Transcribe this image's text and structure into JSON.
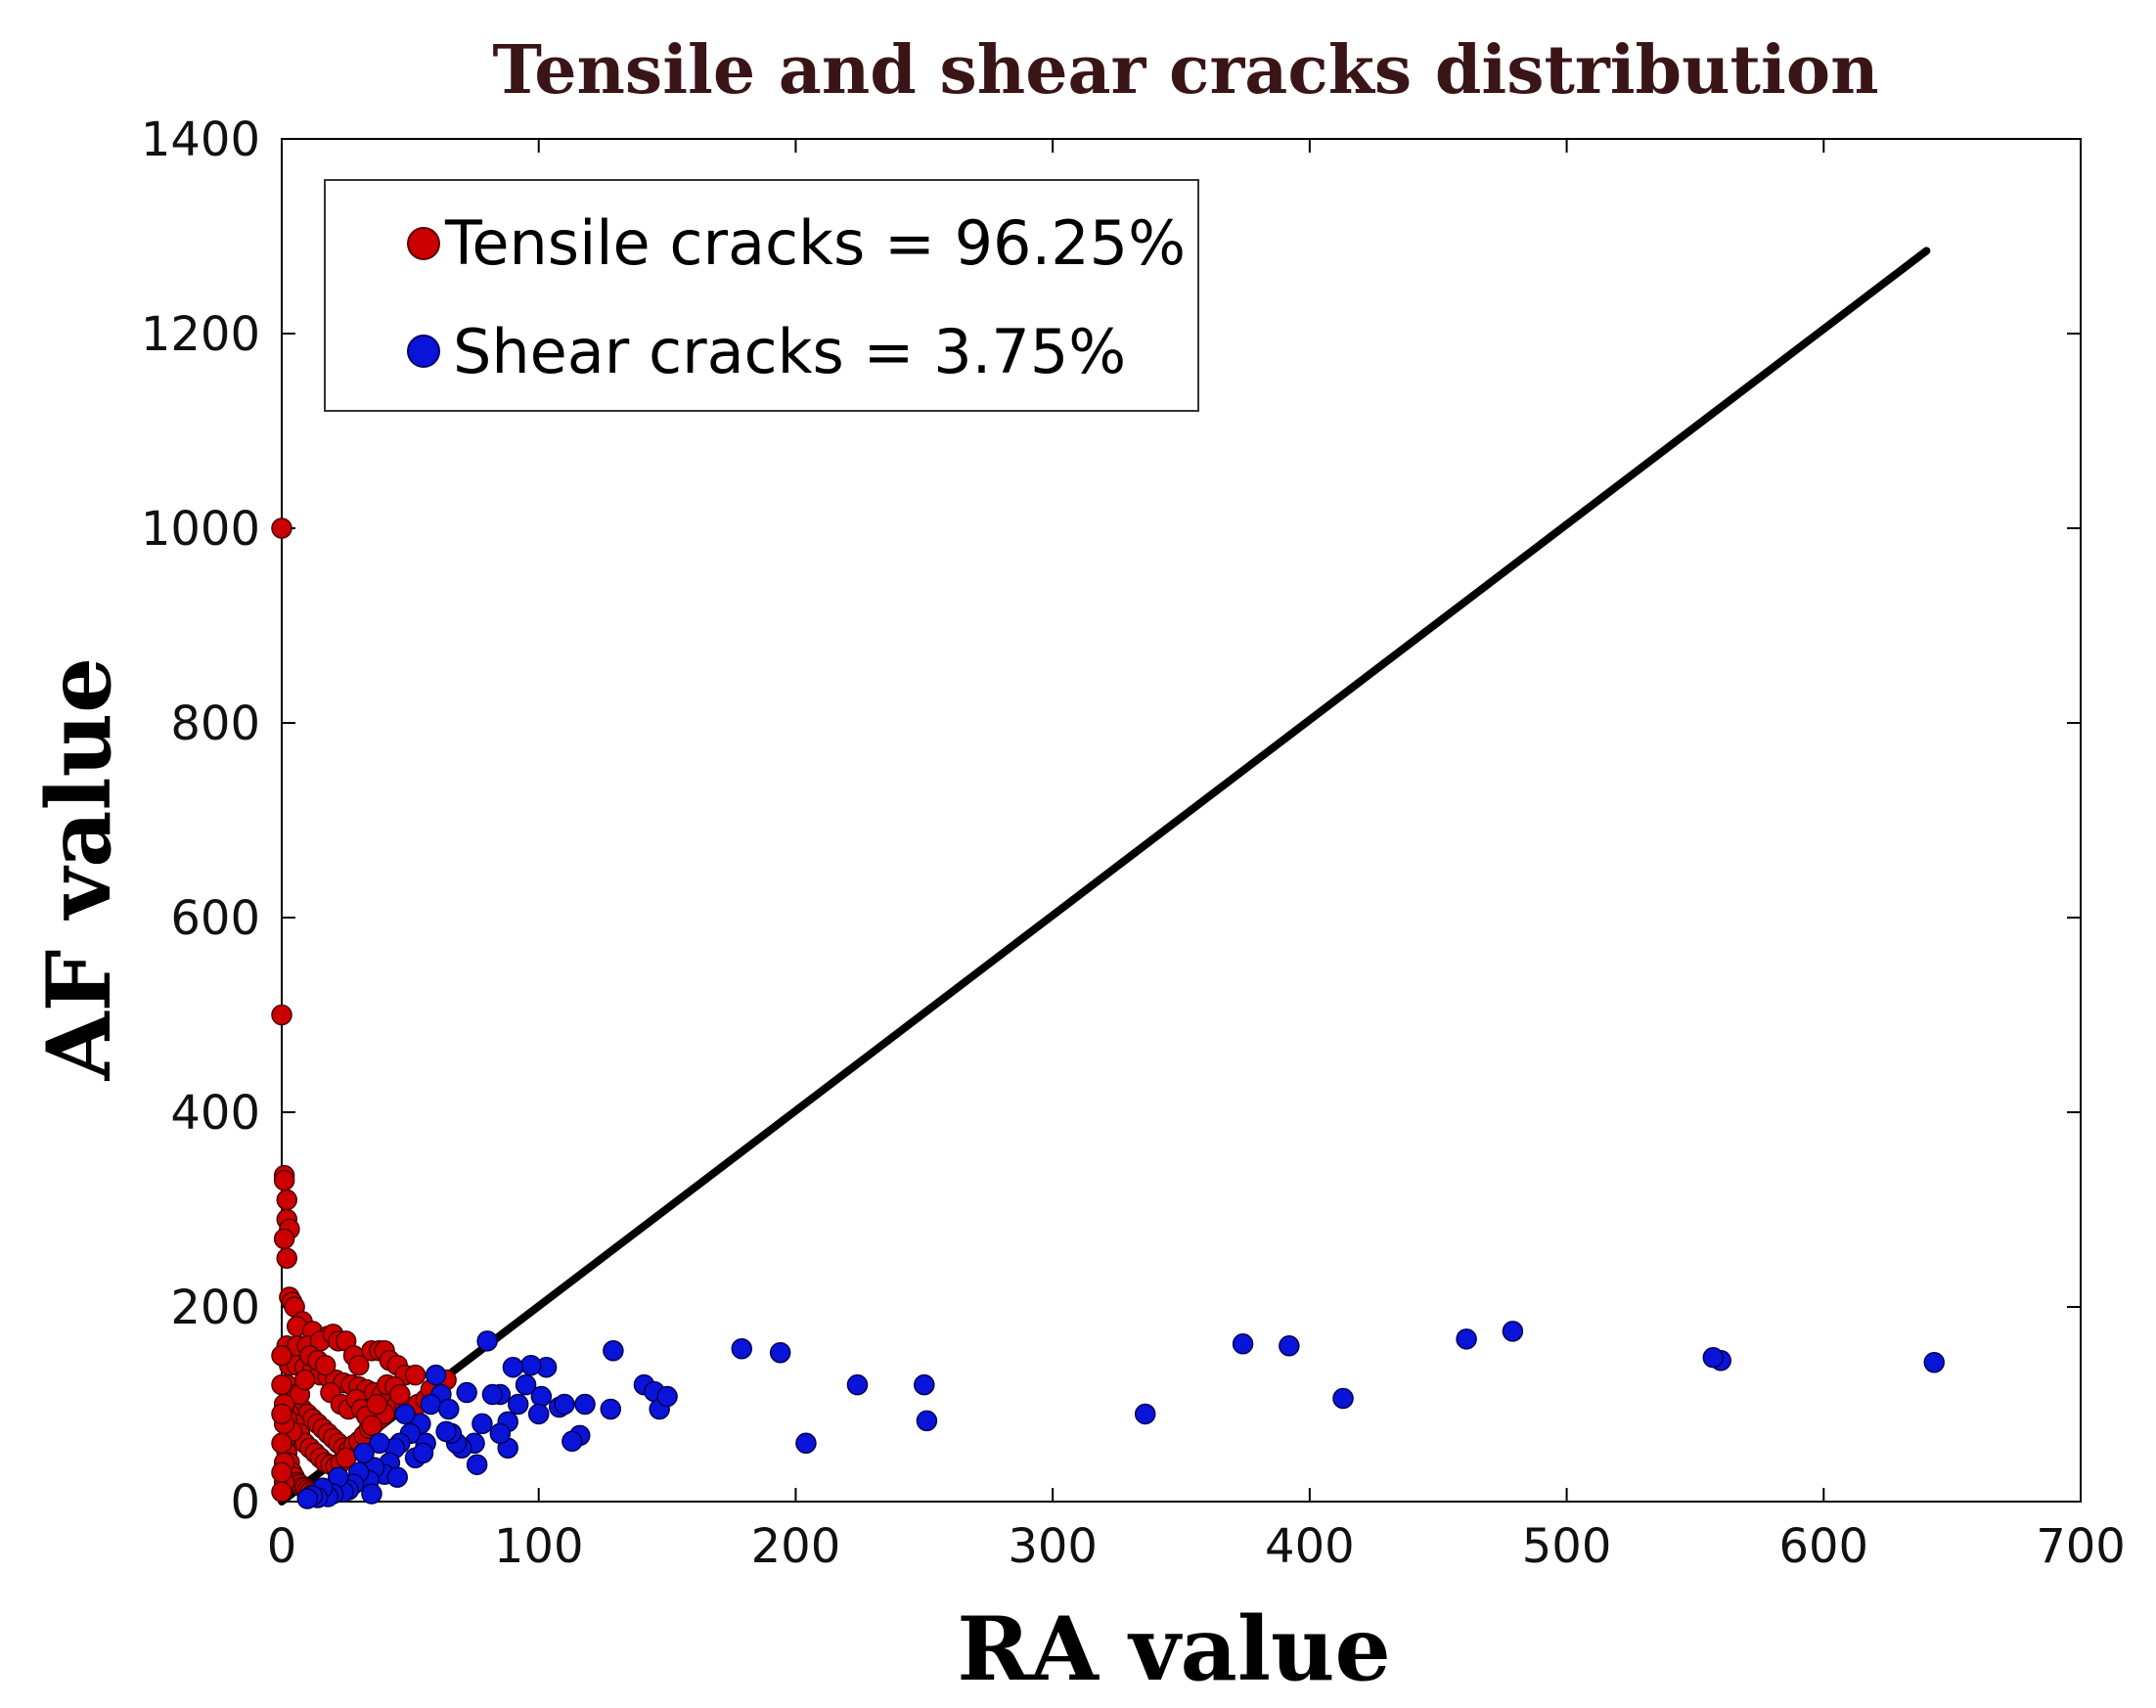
{
  "chart_data": {
    "type": "scatter",
    "title": "Tensile and shear cracks distribution",
    "xlabel": "RA value",
    "ylabel": "AF value",
    "xlim": [
      0,
      700
    ],
    "ylim": [
      0,
      1400
    ],
    "xticks": [
      0,
      100,
      200,
      300,
      400,
      500,
      600,
      700
    ],
    "yticks": [
      0,
      200,
      400,
      600,
      800,
      1000,
      1200,
      1400
    ],
    "legend": {
      "position": "top-left",
      "entries": [
        "Tensile cracks = 96.25%",
        "Shear cracks = 3.75%"
      ]
    },
    "line": {
      "x": [
        0,
        640
      ],
      "y": [
        0,
        1285
      ],
      "color": "#000000"
    },
    "series": [
      {
        "name": "Tensile cracks = 96.25%",
        "color": "#cc0000",
        "points": [
          [
            0,
            1000
          ],
          [
            0,
            500
          ],
          [
            1,
            335
          ],
          [
            1,
            330
          ],
          [
            2,
            310
          ],
          [
            2,
            290
          ],
          [
            3,
            280
          ],
          [
            1,
            270
          ],
          [
            2,
            250
          ],
          [
            3,
            210
          ],
          [
            4,
            205
          ],
          [
            5,
            200
          ],
          [
            8,
            185
          ],
          [
            6,
            180
          ],
          [
            12,
            175
          ],
          [
            18,
            170
          ],
          [
            2,
            160
          ],
          [
            6,
            160
          ],
          [
            10,
            160
          ],
          [
            15,
            165
          ],
          [
            20,
            172
          ],
          [
            22,
            165
          ],
          [
            25,
            165
          ],
          [
            28,
            150
          ],
          [
            30,
            140
          ],
          [
            35,
            155
          ],
          [
            38,
            155
          ],
          [
            40,
            155
          ],
          [
            42,
            145
          ],
          [
            45,
            140
          ],
          [
            48,
            130
          ],
          [
            52,
            130
          ],
          [
            3,
            140
          ],
          [
            6,
            140
          ],
          [
            9,
            138
          ],
          [
            12,
            135
          ],
          [
            15,
            130
          ],
          [
            18,
            128
          ],
          [
            21,
            125
          ],
          [
            24,
            122
          ],
          [
            27,
            120
          ],
          [
            30,
            118
          ],
          [
            33,
            115
          ],
          [
            36,
            112
          ],
          [
            39,
            110
          ],
          [
            42,
            105
          ],
          [
            45,
            100
          ],
          [
            48,
            98
          ],
          [
            50,
            95
          ],
          [
            53,
            100
          ],
          [
            56,
            105
          ],
          [
            60,
            120
          ],
          [
            64,
            125
          ],
          [
            58,
            115
          ],
          [
            2,
            120
          ],
          [
            4,
            110
          ],
          [
            6,
            100
          ],
          [
            8,
            95
          ],
          [
            10,
            90
          ],
          [
            12,
            85
          ],
          [
            14,
            80
          ],
          [
            16,
            75
          ],
          [
            18,
            70
          ],
          [
            20,
            65
          ],
          [
            22,
            60
          ],
          [
            24,
            55
          ],
          [
            26,
            52
          ],
          [
            28,
            58
          ],
          [
            30,
            62
          ],
          [
            32,
            68
          ],
          [
            34,
            75
          ],
          [
            36,
            80
          ],
          [
            38,
            85
          ],
          [
            40,
            90
          ],
          [
            3,
            90
          ],
          [
            5,
            80
          ],
          [
            7,
            70
          ],
          [
            9,
            60
          ],
          [
            11,
            55
          ],
          [
            13,
            50
          ],
          [
            15,
            45
          ],
          [
            17,
            40
          ],
          [
            19,
            38
          ],
          [
            21,
            36
          ],
          [
            23,
            40
          ],
          [
            25,
            45
          ],
          [
            1,
            60
          ],
          [
            2,
            50
          ],
          [
            3,
            40
          ],
          [
            4,
            30
          ],
          [
            5,
            25
          ],
          [
            6,
            20
          ],
          [
            7,
            18
          ],
          [
            8,
            15
          ],
          [
            9,
            14
          ],
          [
            10,
            12
          ],
          [
            11,
            10
          ],
          [
            12,
            8
          ],
          [
            2,
            85
          ],
          [
            4,
            72
          ],
          [
            7,
            110
          ],
          [
            9,
            125
          ],
          [
            11,
            150
          ],
          [
            14,
            145
          ],
          [
            17,
            140
          ],
          [
            19,
            112
          ],
          [
            23,
            100
          ],
          [
            26,
            95
          ],
          [
            29,
            105
          ],
          [
            31,
            95
          ],
          [
            33,
            88
          ],
          [
            35,
            78
          ],
          [
            37,
            100
          ],
          [
            41,
            120
          ],
          [
            44,
            118
          ],
          [
            46,
            110
          ],
          [
            1,
            100
          ],
          [
            1,
            80
          ],
          [
            1,
            40
          ],
          [
            1,
            20
          ],
          [
            0,
            150
          ],
          [
            0,
            120
          ],
          [
            0,
            90
          ],
          [
            0,
            60
          ],
          [
            0,
            30
          ],
          [
            0,
            10
          ]
        ]
      },
      {
        "name": "Shear cracks = 3.75%",
        "color": "#0a14d8",
        "points": [
          [
            643,
            143
          ],
          [
            560,
            145
          ],
          [
            557,
            148
          ],
          [
            479,
            175
          ],
          [
            461,
            167
          ],
          [
            413,
            106
          ],
          [
            392,
            160
          ],
          [
            374,
            162
          ],
          [
            336,
            90
          ],
          [
            250,
            120
          ],
          [
            251,
            83
          ],
          [
            224,
            120
          ],
          [
            204,
            60
          ],
          [
            194,
            153
          ],
          [
            179,
            157
          ],
          [
            129,
            155
          ],
          [
            141,
            120
          ],
          [
            145,
            113
          ],
          [
            147,
            95
          ],
          [
            150,
            108
          ],
          [
            128,
            95
          ],
          [
            118,
            100
          ],
          [
            116,
            68
          ],
          [
            113,
            62
          ],
          [
            108,
            97
          ],
          [
            103,
            138
          ],
          [
            101,
            108
          ],
          [
            100,
            90
          ],
          [
            97,
            140
          ],
          [
            95,
            120
          ],
          [
            90,
            138
          ],
          [
            88,
            55
          ],
          [
            88,
            82
          ],
          [
            85,
            110
          ],
          [
            82,
            110
          ],
          [
            80,
            165
          ],
          [
            78,
            80
          ],
          [
            75,
            60
          ],
          [
            76,
            38
          ],
          [
            72,
            112
          ],
          [
            70,
            55
          ],
          [
            68,
            60
          ],
          [
            66,
            70
          ],
          [
            64,
            72
          ],
          [
            62,
            110
          ],
          [
            60,
            130
          ],
          [
            58,
            100
          ],
          [
            56,
            60
          ],
          [
            54,
            80
          ],
          [
            52,
            45
          ],
          [
            50,
            70
          ],
          [
            48,
            90
          ],
          [
            46,
            60
          ],
          [
            44,
            55
          ],
          [
            42,
            40
          ],
          [
            40,
            28
          ],
          [
            38,
            60
          ],
          [
            36,
            35
          ],
          [
            34,
            22
          ],
          [
            32,
            50
          ],
          [
            30,
            30
          ],
          [
            28,
            18
          ],
          [
            26,
            12
          ],
          [
            24,
            10
          ],
          [
            22,
            25
          ],
          [
            20,
            8
          ],
          [
            18,
            5
          ],
          [
            16,
            14
          ],
          [
            14,
            4
          ],
          [
            12,
            6
          ],
          [
            10,
            3
          ],
          [
            35,
            8
          ],
          [
            45,
            25
          ],
          [
            55,
            50
          ],
          [
            65,
            95
          ],
          [
            85,
            70
          ],
          [
            92,
            100
          ],
          [
            110,
            100
          ]
        ]
      }
    ]
  }
}
